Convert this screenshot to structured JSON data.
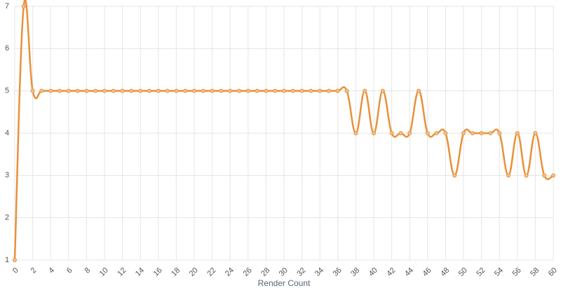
{
  "chart_data": {
    "type": "line",
    "x_label": "Render Count",
    "x": [
      0,
      1,
      2,
      3,
      4,
      5,
      6,
      7,
      8,
      9,
      10,
      11,
      12,
      13,
      14,
      15,
      16,
      17,
      18,
      19,
      20,
      21,
      22,
      23,
      24,
      25,
      26,
      27,
      28,
      29,
      30,
      31,
      32,
      33,
      34,
      35,
      36,
      37,
      38,
      39,
      40,
      41,
      42,
      43,
      44,
      45,
      46,
      47,
      48,
      49,
      50,
      51,
      52,
      53,
      54,
      55,
      56,
      57,
      58,
      59,
      60
    ],
    "values": [
      1,
      7,
      5,
      5,
      5,
      5,
      5,
      5,
      5,
      5,
      5,
      5,
      5,
      5,
      5,
      5,
      5,
      5,
      5,
      5,
      5,
      5,
      5,
      5,
      5,
      5,
      5,
      5,
      5,
      5,
      5,
      5,
      5,
      5,
      5,
      5,
      5,
      5,
      4,
      5,
      4,
      5,
      4,
      4,
      4,
      5,
      4,
      4,
      4,
      3,
      4,
      4,
      4,
      4,
      4,
      3,
      4,
      3,
      4,
      3,
      3
    ],
    "color": "#e8913b",
    "xlim": [
      0,
      60
    ],
    "xticks": [
      0,
      2,
      4,
      6,
      8,
      10,
      12,
      14,
      16,
      18,
      20,
      22,
      24,
      26,
      28,
      30,
      32,
      34,
      36,
      38,
      40,
      42,
      44,
      46,
      48,
      50,
      52,
      54,
      56,
      58,
      60
    ],
    "ylim": [
      1,
      7
    ],
    "yticks": [
      1,
      2,
      3,
      4,
      5,
      6,
      7
    ],
    "grid": true
  }
}
